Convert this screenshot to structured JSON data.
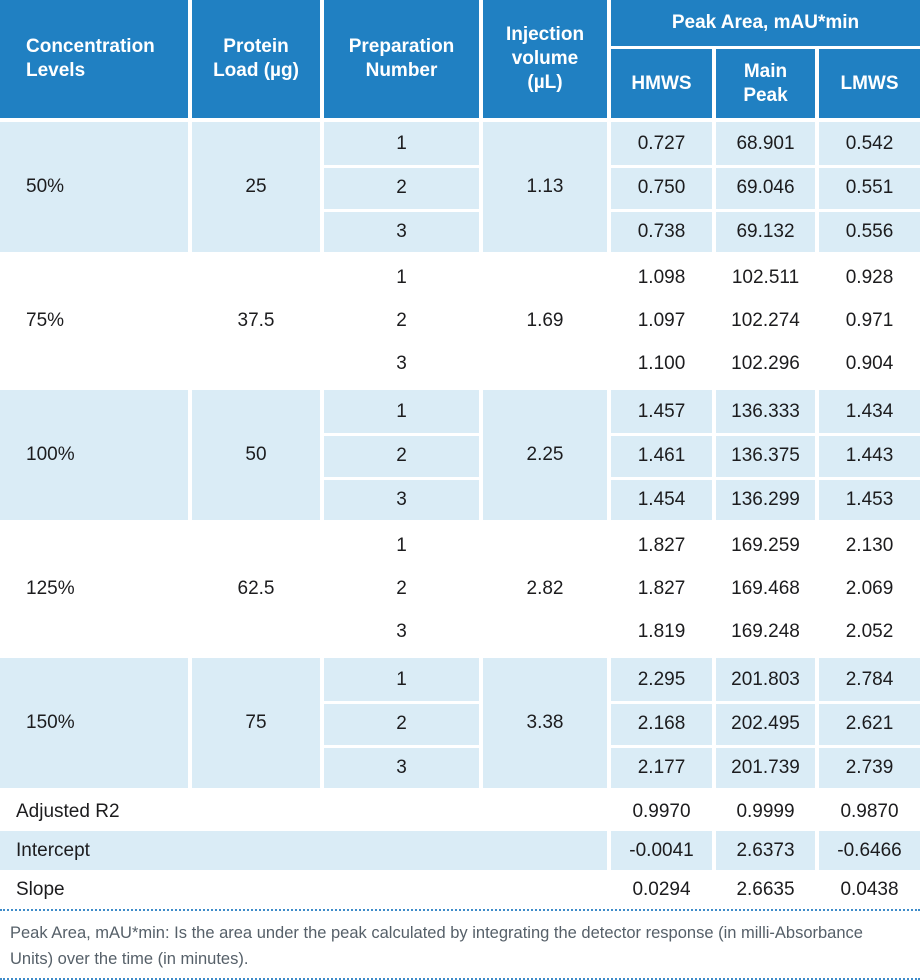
{
  "colors": {
    "header_blue": "#2080c2",
    "row_blue": "#daecf6",
    "dotted_line": "#3f8cc9",
    "text_dark": "#1c1c1e",
    "footnote_gray": "#566069"
  },
  "header": {
    "concentration": "Concentration Levels",
    "protein_load": "Protein Load (µg)",
    "preparation": "Preparation Number",
    "injection": "Injection volume (µL)",
    "peak_area": "Peak Area, mAU*min",
    "hmws": "HMWS",
    "main_peak": "Main Peak",
    "lmws": "LMWS"
  },
  "groups": [
    {
      "level": "50%",
      "protein_load": "25",
      "injection_volume": "1.13",
      "rows": [
        {
          "prep": "1",
          "hmws": "0.727",
          "main_peak": "68.901",
          "lmws": "0.542"
        },
        {
          "prep": "2",
          "hmws": "0.750",
          "main_peak": "69.046",
          "lmws": "0.551"
        },
        {
          "prep": "3",
          "hmws": "0.738",
          "main_peak": "69.132",
          "lmws": "0.556"
        }
      ]
    },
    {
      "level": "75%",
      "protein_load": "37.5",
      "injection_volume": "1.69",
      "rows": [
        {
          "prep": "1",
          "hmws": "1.098",
          "main_peak": "102.511",
          "lmws": "0.928"
        },
        {
          "prep": "2",
          "hmws": "1.097",
          "main_peak": "102.274",
          "lmws": "0.971"
        },
        {
          "prep": "3",
          "hmws": "1.100",
          "main_peak": "102.296",
          "lmws": "0.904"
        }
      ]
    },
    {
      "level": "100%",
      "protein_load": "50",
      "injection_volume": "2.25",
      "rows": [
        {
          "prep": "1",
          "hmws": "1.457",
          "main_peak": "136.333",
          "lmws": "1.434"
        },
        {
          "prep": "2",
          "hmws": "1.461",
          "main_peak": "136.375",
          "lmws": "1.443"
        },
        {
          "prep": "3",
          "hmws": "1.454",
          "main_peak": "136.299",
          "lmws": "1.453"
        }
      ]
    },
    {
      "level": "125%",
      "protein_load": "62.5",
      "injection_volume": "2.82",
      "rows": [
        {
          "prep": "1",
          "hmws": "1.827",
          "main_peak": "169.259",
          "lmws": "2.130"
        },
        {
          "prep": "2",
          "hmws": "1.827",
          "main_peak": "169.468",
          "lmws": "2.069"
        },
        {
          "prep": "3",
          "hmws": "1.819",
          "main_peak": "169.248",
          "lmws": "2.052"
        }
      ]
    },
    {
      "level": "150%",
      "protein_load": "75",
      "injection_volume": "3.38",
      "rows": [
        {
          "prep": "1",
          "hmws": "2.295",
          "main_peak": "201.803",
          "lmws": "2.784"
        },
        {
          "prep": "2",
          "hmws": "2.168",
          "main_peak": "202.495",
          "lmws": "2.621"
        },
        {
          "prep": "3",
          "hmws": "2.177",
          "main_peak": "201.739",
          "lmws": "2.739"
        }
      ]
    }
  ],
  "stats": [
    {
      "label": "Adjusted R2",
      "hmws": "0.9970",
      "main_peak": "0.9999",
      "lmws": "0.9870"
    },
    {
      "label": "Intercept",
      "hmws": "-0.0041",
      "main_peak": "2.6373",
      "lmws": "-0.6466"
    },
    {
      "label": "Slope",
      "hmws": "0.0294",
      "main_peak": "2.6635",
      "lmws": "0.0438"
    }
  ],
  "footnote": "Peak Area, mAU*min: Is the area under the peak calculated by integrating the detector response (in milli-Absorbance Units) over the time (in minutes)."
}
